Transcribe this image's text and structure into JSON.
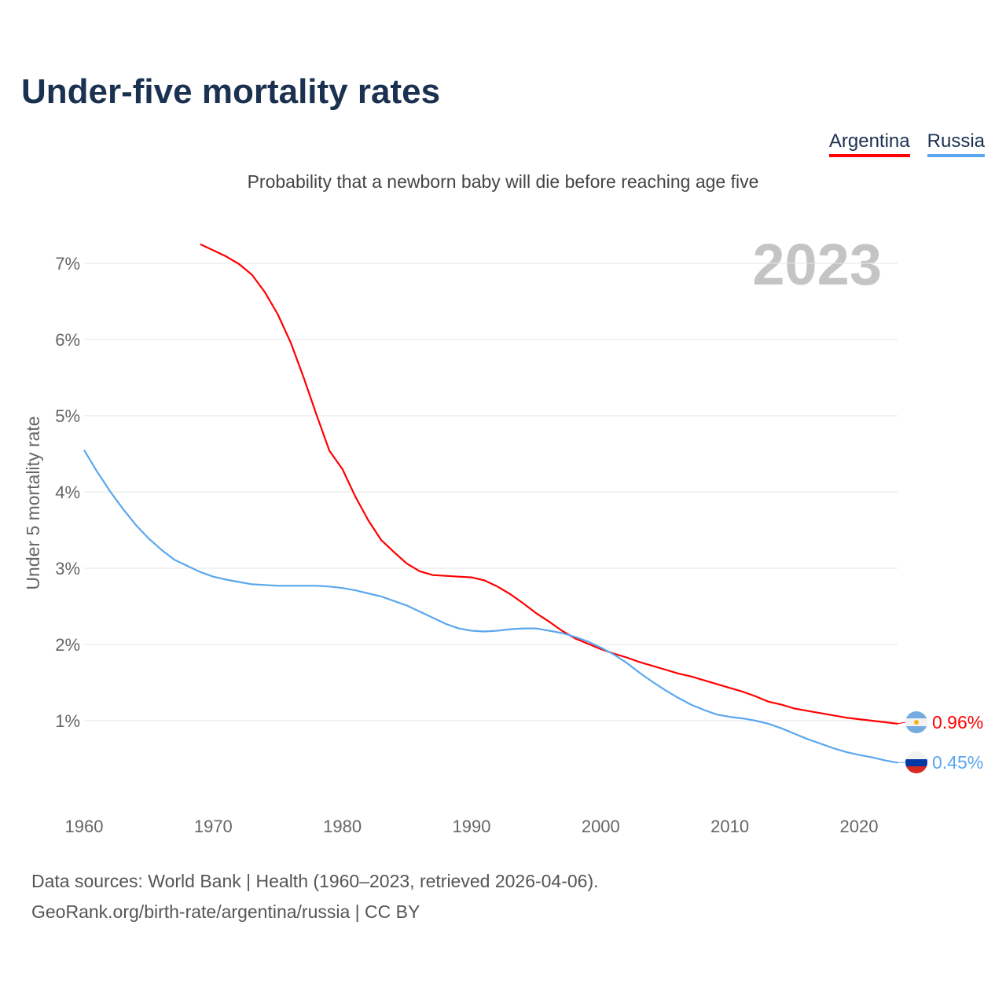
{
  "title": "Under-five mortality rates",
  "subtitle": "Probability that a newborn baby will die before reaching age five",
  "footer": {
    "line1": "Data sources: World Bank | Health (1960–2023, retrieved 2026-04-06).",
    "line2": "GeoRank.org/birth-rate/argentina/russia | CC BY"
  },
  "chart_data": {
    "type": "line",
    "title": "Under-five mortality rates",
    "ylabel": "Under 5 mortality rate",
    "xlabel": "",
    "year_label": "2023",
    "xlim": [
      1960,
      2023
    ],
    "ylim": [
      0,
      7.5
    ],
    "xticks": [
      1960,
      1970,
      1980,
      1990,
      2000,
      2010,
      2020
    ],
    "xtick_labels": [
      "1960",
      "1970",
      "1980",
      "1990",
      "2000",
      "2010",
      "2020"
    ],
    "yticks": [
      1,
      2,
      3,
      4,
      5,
      6,
      7
    ],
    "ytick_labels": [
      "1%",
      "2%",
      "3%",
      "4%",
      "5%",
      "6%",
      "7%"
    ],
    "grid": true,
    "legend_position": "top-right",
    "series": [
      {
        "name": "Argentina",
        "color": "#ff0000",
        "end_label": "0.96%",
        "flag": "argentina-flag",
        "start": 1969,
        "values": [
          7.25,
          7.17,
          7.09,
          6.99,
          6.85,
          6.62,
          6.33,
          5.96,
          5.5,
          5.01,
          4.54,
          4.3,
          3.94,
          3.63,
          3.37,
          3.21,
          3.06,
          2.96,
          2.91,
          2.9,
          2.89,
          2.88,
          2.84,
          2.76,
          2.66,
          2.54,
          2.41,
          2.3,
          2.18,
          2.08,
          2.01,
          1.94,
          1.88,
          1.83,
          1.77,
          1.72,
          1.67,
          1.62,
          1.58,
          1.53,
          1.48,
          1.43,
          1.38,
          1.32,
          1.25,
          1.21,
          1.16,
          1.13,
          1.1,
          1.07,
          1.04,
          1.02,
          1.0,
          0.98,
          0.96
        ]
      },
      {
        "name": "Russia",
        "color": "#5ba7ef",
        "end_label": "0.45%",
        "flag": "russia-flag",
        "start": 1960,
        "values": [
          4.55,
          4.27,
          4.01,
          3.78,
          3.57,
          3.39,
          3.24,
          3.11,
          3.03,
          2.95,
          2.89,
          2.85,
          2.82,
          2.79,
          2.78,
          2.77,
          2.77,
          2.77,
          2.77,
          2.76,
          2.74,
          2.71,
          2.67,
          2.63,
          2.57,
          2.51,
          2.43,
          2.35,
          2.27,
          2.21,
          2.18,
          2.17,
          2.18,
          2.2,
          2.21,
          2.21,
          2.18,
          2.15,
          2.1,
          2.04,
          1.96,
          1.87,
          1.76,
          1.63,
          1.51,
          1.4,
          1.3,
          1.21,
          1.14,
          1.08,
          1.05,
          1.03,
          1.0,
          0.96,
          0.9,
          0.83,
          0.76,
          0.7,
          0.64,
          0.59,
          0.55,
          0.52,
          0.48,
          0.45
        ]
      }
    ]
  }
}
